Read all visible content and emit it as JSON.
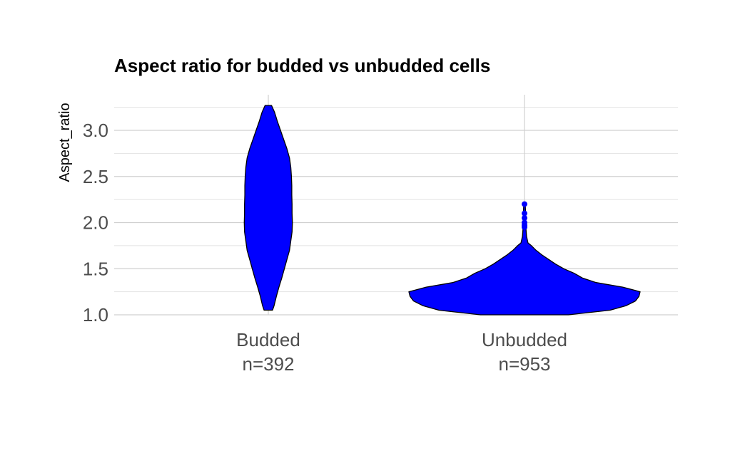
{
  "chart_data": {
    "type": "violin",
    "title": "Aspect ratio for budded vs unbudded cells",
    "xlabel": "",
    "ylabel": "Aspect_ratio",
    "ylim": [
      1.0,
      3.3
    ],
    "yticks": [
      "1.0",
      "1.5",
      "2.0",
      "2.5",
      "3.0"
    ],
    "grid": true,
    "fill_color": "#0000ff",
    "outline_color": "#000000",
    "categories": [
      {
        "label": "Budded",
        "n_label": "n=392"
      },
      {
        "label": "Unbudded",
        "n_label": "n=953"
      }
    ],
    "series": [
      {
        "category": "Budded",
        "min": 1.05,
        "max": 3.27,
        "profile": [
          [
            1.05,
            0.13
          ],
          [
            1.1,
            0.18
          ],
          [
            1.2,
            0.25
          ],
          [
            1.3,
            0.33
          ],
          [
            1.4,
            0.42
          ],
          [
            1.5,
            0.5
          ],
          [
            1.6,
            0.58
          ],
          [
            1.7,
            0.66
          ],
          [
            1.8,
            0.7
          ],
          [
            1.9,
            0.74
          ],
          [
            2.0,
            0.75
          ],
          [
            2.1,
            0.74
          ],
          [
            2.2,
            0.74
          ],
          [
            2.3,
            0.73
          ],
          [
            2.4,
            0.73
          ],
          [
            2.5,
            0.72
          ],
          [
            2.6,
            0.7
          ],
          [
            2.7,
            0.66
          ],
          [
            2.8,
            0.58
          ],
          [
            2.9,
            0.48
          ],
          [
            3.0,
            0.38
          ],
          [
            3.1,
            0.28
          ],
          [
            3.2,
            0.19
          ],
          [
            3.27,
            0.1
          ]
        ]
      },
      {
        "category": "Unbudded",
        "min": 1.0,
        "max": 2.2,
        "profile": [
          [
            1.0,
            0.38
          ],
          [
            1.05,
            0.74
          ],
          [
            1.1,
            0.88
          ],
          [
            1.15,
            0.96
          ],
          [
            1.2,
            0.99
          ],
          [
            1.25,
            1.0
          ],
          [
            1.3,
            0.85
          ],
          [
            1.35,
            0.62
          ],
          [
            1.4,
            0.5
          ],
          [
            1.45,
            0.43
          ],
          [
            1.5,
            0.34
          ],
          [
            1.55,
            0.27
          ],
          [
            1.6,
            0.21
          ],
          [
            1.65,
            0.15
          ],
          [
            1.7,
            0.1
          ],
          [
            1.75,
            0.06
          ],
          [
            1.78,
            0.03
          ],
          [
            1.85,
            0.018
          ],
          [
            1.95,
            0.012
          ],
          [
            2.05,
            0.01
          ],
          [
            2.15,
            0.008
          ],
          [
            2.2,
            0.006
          ]
        ],
        "outliers": [
          2.2,
          2.1,
          2.05,
          2.0,
          1.97,
          1.95
        ]
      }
    ]
  }
}
